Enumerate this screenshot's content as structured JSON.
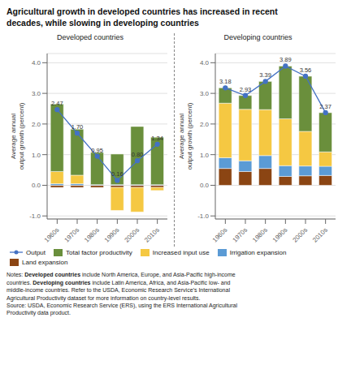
{
  "title": "Agricultural growth in developed countries has increased in recent\ndecades, while slowing in developing countries",
  "annotations": [
    "Notes: Developed countries include North America, Europe, and Asia-Pacific high-income",
    "countries. Developing countries include Latin America, Africa, and Asia-Pacific low- and",
    "middle-income countries. Refer to the USDA, Economic Research Service’s International",
    "Agricultural Productivity dataset for more information on country-level results.",
    "Source: USDA, Economic Research Service (ERS), using the ERS International Agricultural",
    "Productivity data product."
  ],
  "chart_data": [
    {
      "type": "bar",
      "subtitle": "Developed countries",
      "ylabel": "Average annual\noutput growth (percent)",
      "categories": [
        "1960s",
        "1970s",
        "1980s",
        "1990s",
        "2000s",
        "2010s"
      ],
      "stacked": true,
      "grid": true,
      "ylim": [
        -1.1,
        4.3
      ],
      "yticks": [
        {
          "value": -1.0,
          "label": "-1.0"
        },
        {
          "value": 0.0,
          "label": "0.0"
        },
        {
          "value": 1.0,
          "label": "1.0"
        },
        {
          "value": 2.0,
          "label": "2.0"
        },
        {
          "value": 3.0,
          "label": "3.0"
        },
        {
          "value": 4.0,
          "label": "4.0"
        }
      ],
      "series": [
        {
          "name": "Output",
          "type": "line",
          "color": "#4472c4",
          "marker": "circle",
          "data_labels": true,
          "values": [
            2.47,
            1.7,
            0.95,
            0.16,
            0.8,
            1.34
          ],
          "value_labels": [
            "2.47",
            "1.70",
            "0.95",
            "0.16",
            "0.80",
            "1.34"
          ]
        },
        {
          "name": "Total factor productivity",
          "type": "bar",
          "color": "#6a8f3c",
          "values": [
            2.2,
            1.5,
            1.05,
            1.0,
            1.9,
            1.55
          ]
        },
        {
          "name": "Increased input use",
          "type": "bar",
          "color": "#f5c842",
          "values": [
            0.4,
            0.28,
            0.0,
            -0.75,
            -0.8,
            -0.1
          ]
        },
        {
          "name": "Irrigation expansion",
          "type": "bar",
          "color": "#5b9bd5",
          "values": [
            0.05,
            0.05,
            0.02,
            0.02,
            0.02,
            0.02
          ]
        },
        {
          "name": "Land expansion",
          "type": "bar",
          "color": "#8b4513",
          "values": [
            -0.07,
            -0.07,
            -0.07,
            -0.07,
            -0.07,
            -0.07
          ]
        }
      ]
    },
    {
      "type": "bar",
      "subtitle": "Developing countries",
      "ylabel": "Average annual\noutput growth (percent)",
      "categories": [
        "1960s",
        "1970s",
        "1980s",
        "1990s",
        "2000s",
        "2010s"
      ],
      "stacked": true,
      "grid": true,
      "ylim": [
        -1.1,
        4.3
      ],
      "yticks": [
        {
          "value": -1.0,
          "label": "-1.0"
        },
        {
          "value": 0.0,
          "label": "0.0"
        },
        {
          "value": 1.0,
          "label": "1.0"
        },
        {
          "value": 2.0,
          "label": "2.0"
        },
        {
          "value": 3.0,
          "label": "3.0"
        },
        {
          "value": 4.0,
          "label": "4.0"
        }
      ],
      "series": [
        {
          "name": "Output",
          "type": "line",
          "color": "#4472c4",
          "marker": "circle",
          "data_labels": true,
          "values": [
            3.18,
            2.93,
            3.39,
            3.89,
            3.56,
            2.37
          ],
          "value_labels": [
            "3.18",
            "2.93",
            "3.39",
            "3.89",
            "3.56",
            "2.37"
          ]
        },
        {
          "name": "Total factor productivity",
          "type": "bar",
          "color": "#6a8f3c",
          "values": [
            0.5,
            0.45,
            0.92,
            1.72,
            1.8,
            1.28
          ]
        },
        {
          "name": "Increased input use",
          "type": "bar",
          "color": "#f5c842",
          "values": [
            1.78,
            1.68,
            1.5,
            1.53,
            1.13,
            0.47
          ]
        },
        {
          "name": "Irrigation expansion",
          "type": "bar",
          "color": "#5b9bd5",
          "values": [
            0.35,
            0.35,
            0.42,
            0.35,
            0.32,
            0.3
          ]
        },
        {
          "name": "Land expansion",
          "type": "bar",
          "color": "#8b4513",
          "values": [
            0.55,
            0.45,
            0.55,
            0.29,
            0.31,
            0.32
          ]
        }
      ]
    }
  ]
}
